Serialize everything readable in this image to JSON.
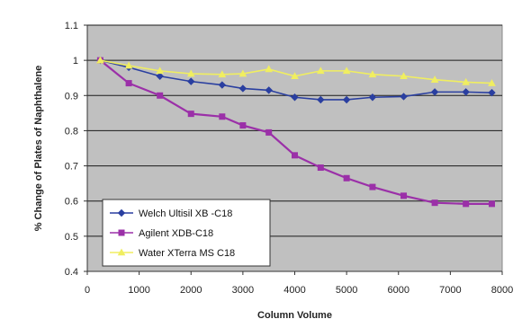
{
  "chart_data": {
    "type": "line",
    "title": "",
    "xlabel": "Column Volume",
    "ylabel": "% Change of Plates of Naphthalene",
    "xlim": [
      0,
      8000
    ],
    "ylim": [
      0.4,
      1.1
    ],
    "xticks": [
      0,
      1000,
      2000,
      3000,
      4000,
      5000,
      6000,
      7000,
      8000
    ],
    "xtick_labels": [
      "0",
      "1000",
      "2000",
      "3000",
      "4000",
      "5000",
      "6000",
      "7000",
      "8000"
    ],
    "yticks": [
      0.4,
      0.5,
      0.6,
      0.7,
      0.8,
      0.9,
      1.0,
      1.1
    ],
    "ytick_labels": [
      "0.4",
      "0.5",
      "0.6",
      "0.7",
      "0.8",
      "0.9",
      "1",
      "1.1"
    ],
    "grid": true,
    "legend_position": "bottom-left",
    "plot_background": "#c0c0c0",
    "series": [
      {
        "name": "Welch Ultisil XB -C18",
        "color": "#2a3fa0",
        "marker": "diamond",
        "x": [
          250,
          800,
          1400,
          2000,
          2600,
          3000,
          3500,
          4000,
          4500,
          5000,
          5500,
          6100,
          6700,
          7300,
          7800
        ],
        "y": [
          1.0,
          0.98,
          0.955,
          0.94,
          0.93,
          0.92,
          0.915,
          0.895,
          0.888,
          0.888,
          0.895,
          0.897,
          0.91,
          0.91,
          0.908
        ]
      },
      {
        "name": "Agilent XDB-C18",
        "color": "#9b30a8",
        "marker": "square",
        "x": [
          250,
          800,
          1400,
          2000,
          2600,
          3000,
          3500,
          4000,
          4500,
          5000,
          5500,
          6100,
          6700,
          7300,
          7800
        ],
        "y": [
          1.0,
          0.935,
          0.9,
          0.848,
          0.84,
          0.815,
          0.795,
          0.73,
          0.695,
          0.665,
          0.64,
          0.615,
          0.595,
          0.592,
          0.592
        ]
      },
      {
        "name": "Water XTerra MS C18",
        "color": "#f0ee60",
        "marker": "triangle",
        "x": [
          250,
          800,
          1400,
          2000,
          2600,
          3000,
          3500,
          4000,
          4500,
          5000,
          5500,
          6100,
          6700,
          7300,
          7800
        ],
        "y": [
          1.0,
          0.985,
          0.97,
          0.962,
          0.96,
          0.962,
          0.975,
          0.955,
          0.97,
          0.97,
          0.96,
          0.955,
          0.945,
          0.938,
          0.935
        ]
      }
    ]
  }
}
